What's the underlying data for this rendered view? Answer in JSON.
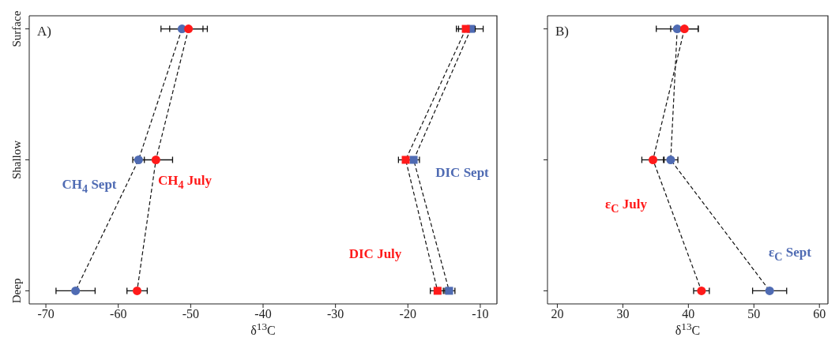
{
  "chart_data": [
    {
      "type": "line",
      "orientation": "horizontal",
      "annotations": [
        "A)"
      ],
      "xlabel": "δ$^{13}$C",
      "categories": [
        "Surface",
        "Shallow",
        "Deep"
      ],
      "xlim": [
        -72.3,
        -7.7
      ],
      "xticks": [
        -70,
        -60,
        -50,
        -40,
        -30,
        -20,
        -10
      ],
      "grid": false,
      "legend": false,
      "line_style": "dashed",
      "series": [
        {
          "name": "CH$_{4}$ Sept",
          "color": "#4f6bb3",
          "marker": "circle",
          "values": [
            -51.2,
            -57.2,
            -65.9
          ],
          "errors": [
            2.9,
            0.8,
            2.7
          ]
        },
        {
          "name": "CH$_{4}$ July",
          "color": "#ff1a1a",
          "marker": "circle",
          "values": [
            -50.3,
            -54.8,
            -57.4
          ],
          "errors": [
            2.6,
            2.3,
            1.4
          ]
        },
        {
          "name": "DIC Sept",
          "color": "#4f6bb3",
          "marker": "square",
          "values": [
            -11.3,
            -19.2,
            -14.3
          ],
          "errors": [
            1.7,
            0.8,
            0.8
          ]
        },
        {
          "name": "DIC July",
          "color": "#ff1a1a",
          "marker": "square",
          "values": [
            -12.0,
            -20.3,
            -15.9
          ],
          "errors": [
            1.3,
            1.0,
            1.0
          ]
        }
      ]
    },
    {
      "type": "line",
      "orientation": "horizontal",
      "annotations": [
        "B)"
      ],
      "xlabel": "δ$^{13}$C",
      "categories": [
        null,
        null,
        null
      ],
      "xlim": [
        18.5,
        61.3
      ],
      "xticks": [
        20,
        30,
        40,
        50,
        60
      ],
      "grid": false,
      "legend": false,
      "line_style": "dashed",
      "series": [
        {
          "name": "ε$_{C}$ Sept",
          "color": "#4f6bb3",
          "marker": "circle",
          "values": [
            38.3,
            37.3,
            52.4
          ],
          "errors": [
            3.2,
            1.1,
            2.6
          ]
        },
        {
          "name": "ε$_{C}$ July",
          "color": "#ff1a1a",
          "marker": "circle",
          "values": [
            39.4,
            34.6,
            42.0
          ],
          "errors": [
            2.1,
            1.7,
            1.2
          ]
        }
      ]
    }
  ]
}
